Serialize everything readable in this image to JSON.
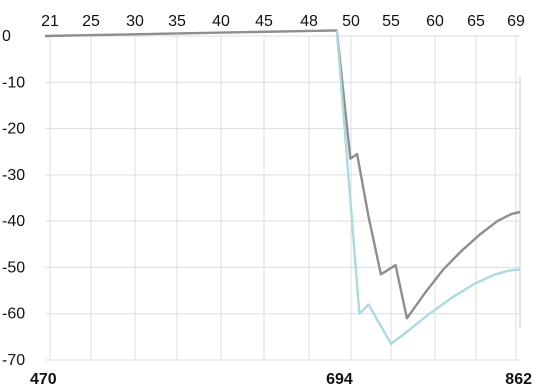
{
  "chart_data": {
    "type": "line",
    "title": "",
    "xlabel": "",
    "ylabel": "",
    "grid": true,
    "legend": "none",
    "xlim": [
      0,
      21
    ],
    "ylim": [
      -70,
      0
    ],
    "x_top_ticks": [
      "21",
      "25",
      "30",
      "35",
      "40",
      "45",
      "48",
      "50",
      "55",
      "60",
      "65",
      "69"
    ],
    "x_bottom_ticks": [
      {
        "x": 0,
        "label": "470"
      },
      {
        "x": 12.4,
        "label": "694"
      },
      {
        "x": 21,
        "label": "862"
      }
    ],
    "y_ticks": [
      "0",
      "-10",
      "-20",
      "-30",
      "-40",
      "-50",
      "-60",
      "-70"
    ],
    "series": [
      {
        "color": "#8e8e8e",
        "points": [
          [
            0,
            0
          ],
          [
            12.9,
            1.2
          ],
          [
            13.5,
            -26.5
          ],
          [
            13.8,
            -25.5
          ],
          [
            14.3,
            -39
          ],
          [
            14.85,
            -51.5
          ],
          [
            15.5,
            -49.5
          ],
          [
            16.0,
            -61
          ],
          [
            16.8,
            -55.5
          ],
          [
            17.6,
            -50.5
          ],
          [
            18.4,
            -46.5
          ],
          [
            19.2,
            -43
          ],
          [
            20.0,
            -40
          ],
          [
            20.6,
            -38.5
          ],
          [
            21,
            -38
          ]
        ]
      },
      {
        "color": "#a9dbe0",
        "points": [
          [
            12.9,
            1.2
          ],
          [
            13.9,
            -60
          ],
          [
            14.3,
            -58
          ],
          [
            15.3,
            -66.5
          ],
          [
            16.1,
            -63.5
          ],
          [
            17.0,
            -60
          ],
          [
            18.0,
            -56.5
          ],
          [
            19.0,
            -53.5
          ],
          [
            19.9,
            -51.5
          ],
          [
            20.5,
            -50.7
          ],
          [
            21,
            -50.4
          ]
        ]
      }
    ]
  }
}
